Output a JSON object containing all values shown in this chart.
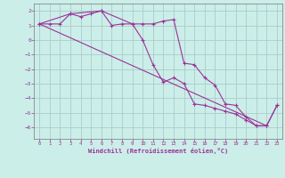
{
  "background_color": "#cceee8",
  "grid_color": "#aacccc",
  "line_color": "#993399",
  "xlabel": "Windchill (Refroidissement éolien,°C)",
  "xlim": [
    -0.5,
    23.5
  ],
  "ylim": [
    -6.8,
    2.5
  ],
  "yticks": [
    2,
    1,
    0,
    -1,
    -2,
    -3,
    -4,
    -5,
    -6
  ],
  "xticks": [
    0,
    1,
    2,
    3,
    4,
    5,
    6,
    7,
    8,
    9,
    10,
    11,
    12,
    13,
    14,
    15,
    16,
    17,
    18,
    19,
    20,
    21,
    22,
    23
  ],
  "line1_x": [
    0,
    1,
    2,
    3,
    4,
    5,
    6,
    7,
    8,
    9,
    10,
    11,
    12,
    13,
    14,
    15,
    16,
    17,
    18,
    19,
    20,
    21,
    22,
    23
  ],
  "line1_y": [
    1.1,
    1.1,
    1.1,
    1.8,
    1.6,
    1.8,
    2.0,
    1.0,
    1.1,
    1.1,
    1.1,
    1.1,
    1.3,
    1.4,
    -1.6,
    -1.7,
    -2.6,
    -3.1,
    -4.4,
    -4.5,
    -5.3,
    -5.9,
    -5.9,
    -4.5
  ],
  "line2_x": [
    0,
    22
  ],
  "line2_y": [
    1.1,
    -5.9
  ],
  "line3_x": [
    0,
    3,
    6,
    9,
    10,
    11,
    12,
    13,
    14,
    15,
    16,
    17,
    18,
    19,
    20,
    21,
    22,
    23
  ],
  "line3_y": [
    1.1,
    1.8,
    2.0,
    1.1,
    0.0,
    -1.7,
    -2.9,
    -2.6,
    -3.0,
    -4.4,
    -4.5,
    -4.7,
    -4.9,
    -5.1,
    -5.5,
    -5.9,
    -5.9,
    -4.5
  ]
}
